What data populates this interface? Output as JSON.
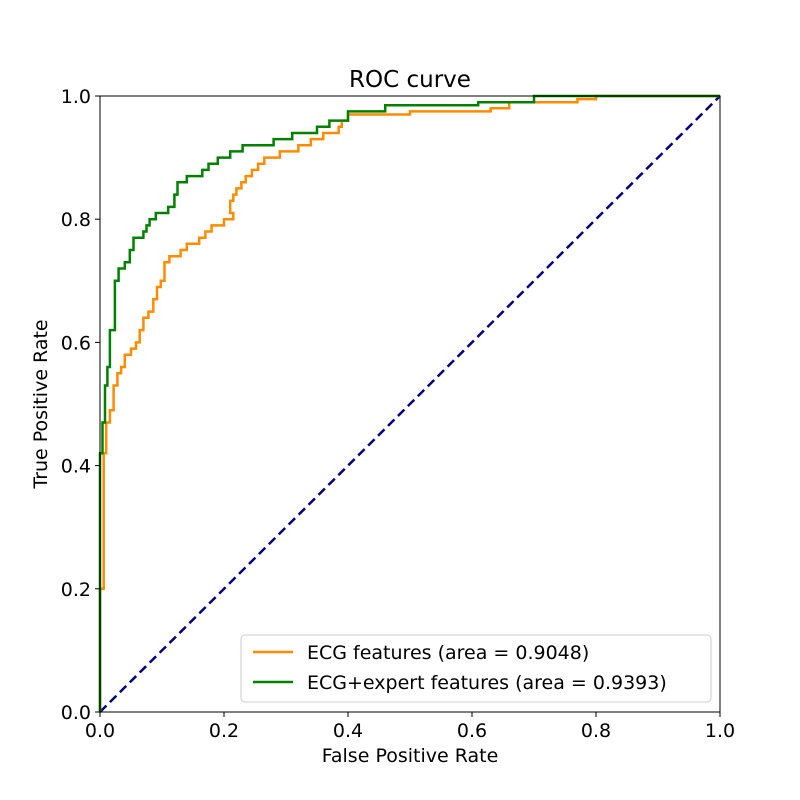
{
  "chart_data": {
    "type": "line",
    "title": "ROC curve",
    "xlabel": "False Positive Rate",
    "ylabel": "True Positive Rate",
    "xlim": [
      0.0,
      1.0
    ],
    "ylim": [
      0.0,
      1.0
    ],
    "xticks": [
      "0.0",
      "0.2",
      "0.4",
      "0.6",
      "0.8",
      "1.0"
    ],
    "yticks": [
      "0.0",
      "0.2",
      "0.4",
      "0.6",
      "0.8",
      "1.0"
    ],
    "grid": false,
    "legend_position": "lower-right",
    "series": [
      {
        "name": "ECG features (area = 0.9048)",
        "color": "#ff8c00",
        "style": "step",
        "points": [
          [
            0.0,
            0.0
          ],
          [
            0.0,
            0.2
          ],
          [
            0.006,
            0.2
          ],
          [
            0.006,
            0.42
          ],
          [
            0.01,
            0.42
          ],
          [
            0.01,
            0.47
          ],
          [
            0.016,
            0.47
          ],
          [
            0.016,
            0.49
          ],
          [
            0.022,
            0.49
          ],
          [
            0.022,
            0.53
          ],
          [
            0.028,
            0.53
          ],
          [
            0.028,
            0.55
          ],
          [
            0.034,
            0.55
          ],
          [
            0.034,
            0.56
          ],
          [
            0.04,
            0.56
          ],
          [
            0.04,
            0.58
          ],
          [
            0.05,
            0.58
          ],
          [
            0.05,
            0.59
          ],
          [
            0.058,
            0.59
          ],
          [
            0.058,
            0.6
          ],
          [
            0.064,
            0.6
          ],
          [
            0.064,
            0.62
          ],
          [
            0.07,
            0.62
          ],
          [
            0.07,
            0.64
          ],
          [
            0.078,
            0.64
          ],
          [
            0.078,
            0.65
          ],
          [
            0.086,
            0.65
          ],
          [
            0.086,
            0.67
          ],
          [
            0.092,
            0.67
          ],
          [
            0.092,
            0.69
          ],
          [
            0.098,
            0.69
          ],
          [
            0.098,
            0.7
          ],
          [
            0.104,
            0.7
          ],
          [
            0.104,
            0.73
          ],
          [
            0.112,
            0.73
          ],
          [
            0.112,
            0.74
          ],
          [
            0.13,
            0.74
          ],
          [
            0.13,
            0.75
          ],
          [
            0.14,
            0.75
          ],
          [
            0.14,
            0.76
          ],
          [
            0.16,
            0.76
          ],
          [
            0.16,
            0.77
          ],
          [
            0.17,
            0.77
          ],
          [
            0.17,
            0.78
          ],
          [
            0.18,
            0.78
          ],
          [
            0.18,
            0.79
          ],
          [
            0.2,
            0.79
          ],
          [
            0.2,
            0.8
          ],
          [
            0.215,
            0.8
          ],
          [
            0.215,
            0.81
          ],
          [
            0.21,
            0.81
          ],
          [
            0.21,
            0.82
          ],
          [
            0.21,
            0.83
          ],
          [
            0.215,
            0.83
          ],
          [
            0.215,
            0.84
          ],
          [
            0.22,
            0.84
          ],
          [
            0.22,
            0.85
          ],
          [
            0.228,
            0.85
          ],
          [
            0.228,
            0.86
          ],
          [
            0.235,
            0.86
          ],
          [
            0.235,
            0.87
          ],
          [
            0.245,
            0.87
          ],
          [
            0.245,
            0.88
          ],
          [
            0.255,
            0.88
          ],
          [
            0.255,
            0.89
          ],
          [
            0.265,
            0.89
          ],
          [
            0.265,
            0.9
          ],
          [
            0.29,
            0.9
          ],
          [
            0.29,
            0.91
          ],
          [
            0.32,
            0.91
          ],
          [
            0.32,
            0.92
          ],
          [
            0.34,
            0.92
          ],
          [
            0.34,
            0.93
          ],
          [
            0.36,
            0.93
          ],
          [
            0.36,
            0.94
          ],
          [
            0.385,
            0.94
          ],
          [
            0.385,
            0.95
          ],
          [
            0.39,
            0.95
          ],
          [
            0.39,
            0.96
          ],
          [
            0.4,
            0.96
          ],
          [
            0.4,
            0.97
          ],
          [
            0.5,
            0.97
          ],
          [
            0.5,
            0.975
          ],
          [
            0.63,
            0.975
          ],
          [
            0.63,
            0.98
          ],
          [
            0.66,
            0.98
          ],
          [
            0.66,
            0.99
          ],
          [
            0.77,
            0.99
          ],
          [
            0.77,
            0.995
          ],
          [
            0.8,
            0.995
          ],
          [
            0.8,
            1.0
          ],
          [
            1.0,
            1.0
          ]
        ]
      },
      {
        "name": "ECG+expert features (area = 0.9393)",
        "color": "#008000",
        "style": "step",
        "points": [
          [
            0.0,
            0.0
          ],
          [
            0.0,
            0.42
          ],
          [
            0.004,
            0.42
          ],
          [
            0.004,
            0.47
          ],
          [
            0.008,
            0.47
          ],
          [
            0.008,
            0.53
          ],
          [
            0.012,
            0.53
          ],
          [
            0.012,
            0.56
          ],
          [
            0.016,
            0.56
          ],
          [
            0.016,
            0.62
          ],
          [
            0.024,
            0.62
          ],
          [
            0.024,
            0.7
          ],
          [
            0.03,
            0.7
          ],
          [
            0.03,
            0.72
          ],
          [
            0.04,
            0.72
          ],
          [
            0.04,
            0.73
          ],
          [
            0.048,
            0.73
          ],
          [
            0.048,
            0.75
          ],
          [
            0.054,
            0.75
          ],
          [
            0.054,
            0.77
          ],
          [
            0.07,
            0.77
          ],
          [
            0.07,
            0.78
          ],
          [
            0.075,
            0.78
          ],
          [
            0.075,
            0.79
          ],
          [
            0.08,
            0.79
          ],
          [
            0.08,
            0.8
          ],
          [
            0.09,
            0.8
          ],
          [
            0.09,
            0.81
          ],
          [
            0.11,
            0.81
          ],
          [
            0.11,
            0.82
          ],
          [
            0.12,
            0.82
          ],
          [
            0.12,
            0.84
          ],
          [
            0.125,
            0.84
          ],
          [
            0.125,
            0.86
          ],
          [
            0.14,
            0.86
          ],
          [
            0.14,
            0.87
          ],
          [
            0.165,
            0.87
          ],
          [
            0.165,
            0.88
          ],
          [
            0.175,
            0.88
          ],
          [
            0.175,
            0.89
          ],
          [
            0.19,
            0.89
          ],
          [
            0.19,
            0.9
          ],
          [
            0.21,
            0.9
          ],
          [
            0.21,
            0.91
          ],
          [
            0.23,
            0.91
          ],
          [
            0.23,
            0.92
          ],
          [
            0.28,
            0.92
          ],
          [
            0.28,
            0.93
          ],
          [
            0.31,
            0.93
          ],
          [
            0.31,
            0.94
          ],
          [
            0.35,
            0.94
          ],
          [
            0.35,
            0.95
          ],
          [
            0.37,
            0.95
          ],
          [
            0.37,
            0.96
          ],
          [
            0.4,
            0.96
          ],
          [
            0.4,
            0.975
          ],
          [
            0.46,
            0.975
          ],
          [
            0.46,
            0.985
          ],
          [
            0.61,
            0.985
          ],
          [
            0.61,
            0.99
          ],
          [
            0.7,
            0.99
          ],
          [
            0.7,
            1.0
          ],
          [
            1.0,
            1.0
          ]
        ]
      },
      {
        "name": "",
        "color": "#000080",
        "style": "dashed",
        "points": [
          [
            0.0,
            0.0
          ],
          [
            1.0,
            1.0
          ]
        ]
      }
    ]
  }
}
